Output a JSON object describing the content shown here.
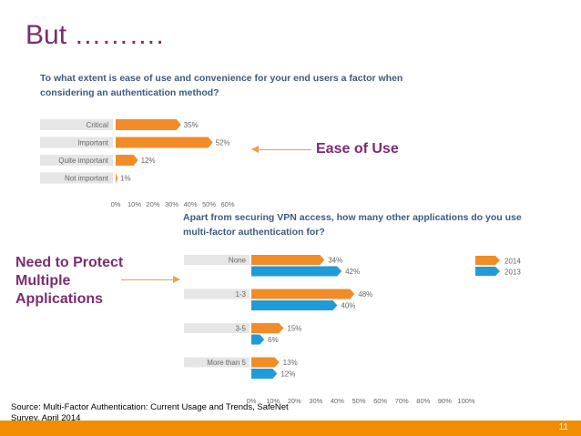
{
  "slide": {
    "title": "But ……….",
    "callout_ease": "Ease of Use",
    "callout_protect": "Need to Protect Multiple Applications",
    "source": "Source: Multi-Factor Authentication: Current Usage and Trends, SafeNet Survey, April 2014",
    "page_number": "11"
  },
  "colors": {
    "title": "#7b2d6e",
    "question": "#3d5a80",
    "orange": "#f28c28",
    "blue": "#1f9bd7",
    "label_bg": "#e6e6e6",
    "footer": "#f28c00"
  },
  "chart_data": [
    {
      "type": "bar",
      "orientation": "horizontal",
      "title": "To what extent is ease of use and convenience for your end users a factor when considering an authentication method?",
      "categories": [
        "Critical",
        "Important",
        "Quite important",
        "Not important"
      ],
      "values": [
        35,
        52,
        12,
        1
      ],
      "value_labels": [
        "35%",
        "52%",
        "12%",
        "1%"
      ],
      "xlim": [
        0,
        60
      ],
      "xticks": [
        "0%",
        "10%",
        "20%",
        "30%",
        "40%",
        "50%",
        "60%"
      ]
    },
    {
      "type": "bar",
      "orientation": "horizontal",
      "title": "Apart from securing VPN access, how many other applications do you use multi-factor authentication for?",
      "categories": [
        "None",
        "1-3",
        "3-5",
        "More than 5"
      ],
      "series": [
        {
          "name": "2014",
          "values": [
            34,
            48,
            15,
            13
          ],
          "labels": [
            "34%",
            "48%",
            "15%",
            "13%"
          ]
        },
        {
          "name": "2013",
          "values": [
            42,
            40,
            6,
            12
          ],
          "labels": [
            "42%",
            "40%",
            "6%",
            "12%"
          ]
        }
      ],
      "legend": "right",
      "xlim": [
        0,
        100
      ],
      "xticks": [
        "0%",
        "10%",
        "20%",
        "30%",
        "40%",
        "50%",
        "60%",
        "70%",
        "80%",
        "90%",
        "100%"
      ]
    }
  ]
}
